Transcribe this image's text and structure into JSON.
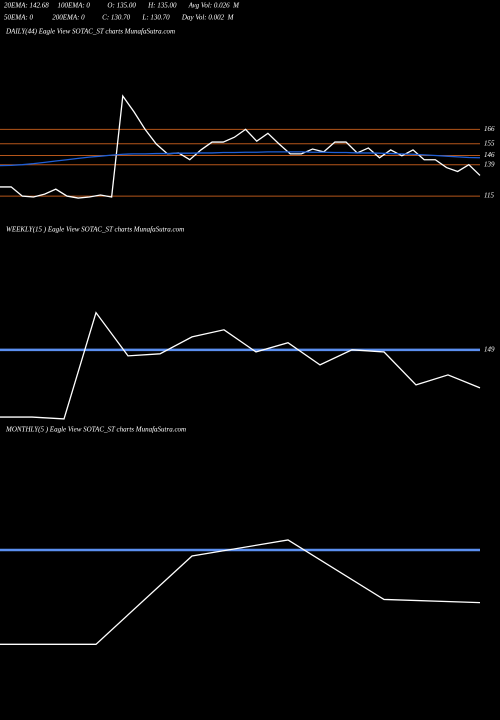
{
  "header": [
    "20EMA: 142.68     100EMA: 0          O: 135.00       H: 135.00       Avg Vol: 0.026  M",
    "50EMA: 0           200EMA: 0          C: 130.70       L: 130.70       Day Vol: 0.002  M"
  ],
  "chart_data": [
    {
      "type": "line",
      "title": "DAILY(44) Eagle   View  SOTAC_ST charts MunafaSutra.com",
      "categories": [
        null,
        null,
        null,
        null,
        null,
        null,
        null,
        null,
        null,
        null,
        null,
        null,
        null,
        null,
        null,
        null,
        null,
        null,
        null,
        null,
        null,
        null,
        null,
        null,
        null,
        null,
        null,
        null,
        null,
        null,
        null,
        null,
        null,
        null,
        null,
        null,
        null,
        null,
        null,
        null,
        null,
        null,
        null,
        null
      ],
      "series": [
        {
          "color": "#ffffff",
          "values": [
            122,
            122,
            115,
            114.3,
            116.5,
            120.3,
            115,
            113.5,
            114.3,
            115.8,
            114.3,
            191.5,
            179.5,
            166,
            154.8,
            147.3,
            148,
            142.8,
            150.3,
            156.3,
            156.3,
            160,
            166,
            157,
            163,
            154.8,
            147.3,
            147.3,
            151,
            148.8,
            156.3,
            156.3,
            148,
            151.8,
            144.3,
            150.3,
            145.8,
            150.3,
            142.8,
            142.8,
            136.8,
            133.8,
            139,
            130.8
          ]
        },
        {
          "color": "#1f5fd6",
          "values": [
            138.3,
            138.5,
            139,
            139.8,
            140.8,
            141.8,
            142.8,
            143.8,
            144.8,
            145.5,
            146.3,
            147,
            147.3,
            147.3,
            147.5,
            147.5,
            147.8,
            147.8,
            148,
            148,
            148.3,
            148.3,
            148.5,
            148.5,
            148.8,
            148.8,
            148.8,
            148.8,
            148.5,
            148.5,
            148.3,
            148.3,
            148,
            148,
            147.8,
            147.5,
            147.3,
            147,
            146.5,
            146,
            145.5,
            145,
            144.5,
            144.3
          ]
        }
      ],
      "ylim": [
        112,
        242
      ],
      "yticks": [
        166,
        155,
        146,
        139,
        115
      ],
      "grid": true,
      "grid_color": "#b5561a"
    },
    {
      "type": "line",
      "title": "WEEKLY(15                ) Eagle   View  SOTAC_ST charts MunafaSutra.com",
      "categories": [
        null,
        null,
        null,
        null,
        null,
        null,
        null,
        null,
        null,
        null,
        null,
        null,
        null,
        null,
        null,
        null
      ],
      "series": [
        {
          "color": "#ffffff",
          "values": [
            116.8,
            116.8,
            115.9,
            166.8,
            146.1,
            147.1,
            155.2,
            158.6,
            148,
            152.4,
            141.8,
            149,
            148,
            132.2,
            137,
            130.8
          ]
        }
      ],
      "ylim": [
        113,
        204
      ],
      "yticks": [
        149
      ],
      "grid": true,
      "grid_color": "#5b8ff0"
    },
    {
      "type": "line",
      "title": "MONTHLY(5                ) Eagle  View  SOTAC_ST charts MunafaSutra.com",
      "categories": [
        null,
        null,
        null,
        null,
        null,
        null
      ],
      "series": [
        {
          "color": "#ffffff",
          "values": [
            116.2,
            116.2,
            146.9,
            152.5,
            131.8,
            130.7
          ]
        }
      ],
      "ylim": [
        109,
        189
      ],
      "level_lines": [
        149
      ],
      "grid_color": "#5b8ff0"
    }
  ]
}
